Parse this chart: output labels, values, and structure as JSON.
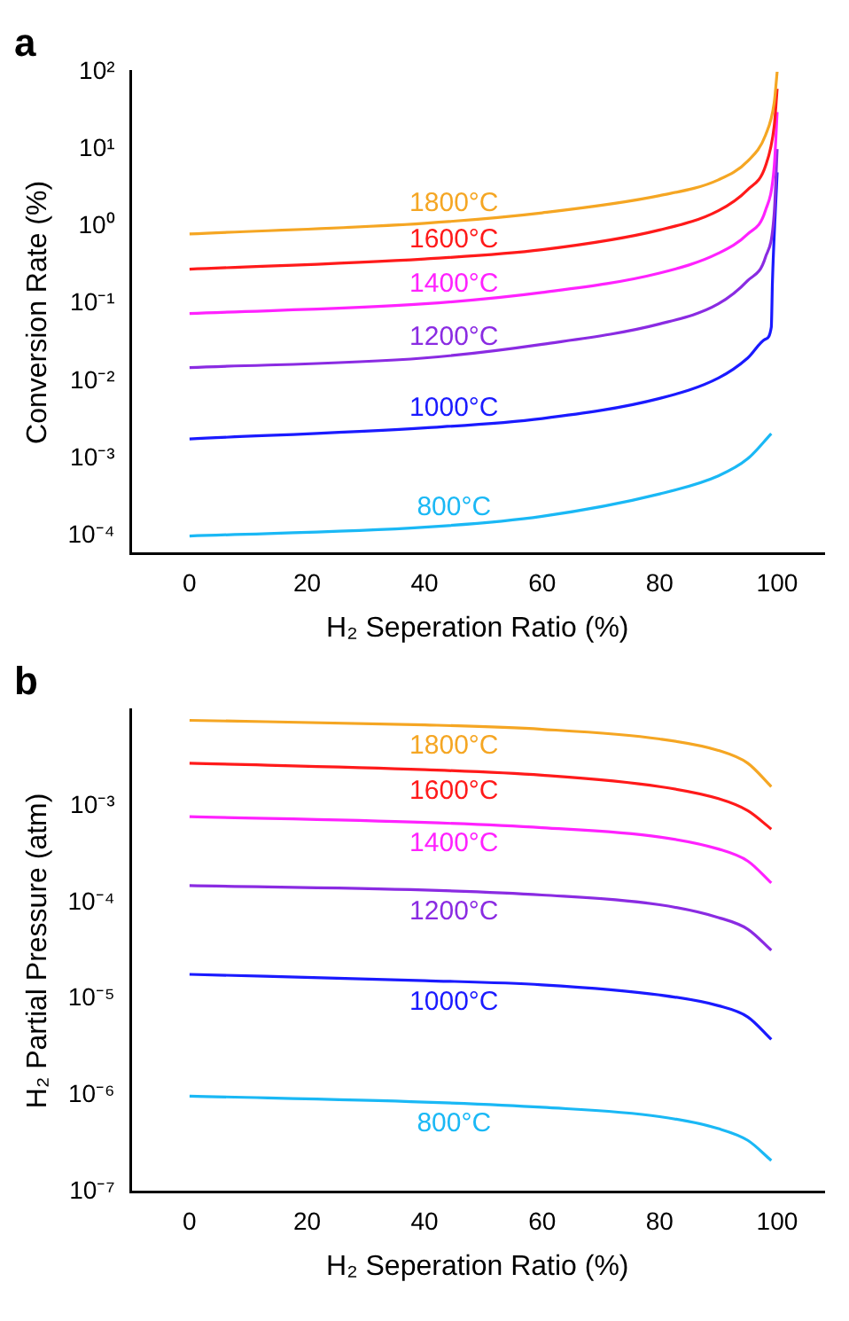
{
  "chart_data": [
    {
      "type": "line",
      "title": "a",
      "xlabel": "H₂ Seperation Ratio (%)",
      "ylabel": "Conversion Rate (%)",
      "log": "y",
      "grid": false,
      "legend": false,
      "marker": "none",
      "line_style": "solid",
      "xlim": [
        -10,
        108
      ],
      "xticks": [
        0,
        20,
        40,
        60,
        80,
        100
      ],
      "ylim": [
        6e-05,
        100
      ],
      "yticks": [
        {
          "value": 0.0001,
          "label": "10⁻⁴"
        },
        {
          "value": 0.001,
          "label": "10⁻³"
        },
        {
          "value": 0.01,
          "label": "10⁻²"
        },
        {
          "value": 0.1,
          "label": "10⁻¹"
        },
        {
          "value": 1,
          "label": "10⁰"
        },
        {
          "value": 10,
          "label": "10¹"
        },
        {
          "value": 100,
          "label": "10²"
        }
      ],
      "series": [
        {
          "name": "1800°C",
          "color": "#f5a623",
          "x": [
            0,
            40,
            60,
            80,
            90,
            95,
            98,
            99.5,
            100
          ],
          "values": [
            0.8,
            1.1,
            1.5,
            2.5,
            4,
            7,
            15,
            40,
            100
          ]
        },
        {
          "name": "1600°C",
          "color": "#ff1a1a",
          "x": [
            0,
            40,
            60,
            80,
            90,
            95,
            98,
            99.5,
            100
          ],
          "values": [
            0.28,
            0.38,
            0.5,
            0.9,
            1.6,
            3,
            6,
            20,
            60
          ]
        },
        {
          "name": "1400°C",
          "color": "#ff22ff",
          "x": [
            0,
            40,
            60,
            80,
            90,
            95,
            98,
            99.5,
            100
          ],
          "values": [
            0.075,
            0.1,
            0.14,
            0.25,
            0.45,
            0.8,
            1.6,
            6,
            30
          ]
        },
        {
          "name": "1200°C",
          "color": "#8a2be2",
          "x": [
            0,
            40,
            60,
            80,
            90,
            95,
            98,
            99.5,
            100
          ],
          "values": [
            0.015,
            0.02,
            0.03,
            0.055,
            0.1,
            0.2,
            0.4,
            1.5,
            10
          ]
        },
        {
          "name": "1000°C",
          "color": "#1a1aff",
          "x": [
            0,
            40,
            60,
            80,
            90,
            95,
            98,
            99,
            99.2,
            100
          ],
          "values": [
            0.0018,
            0.0025,
            0.0033,
            0.006,
            0.011,
            0.02,
            0.035,
            0.05,
            0.2,
            5
          ]
        },
        {
          "name": "800°C",
          "color": "#1ab8f5",
          "x": [
            0,
            40,
            60,
            80,
            90,
            95,
            99
          ],
          "values": [
            0.0001,
            0.00013,
            0.00018,
            0.00035,
            0.0006,
            0.001,
            0.0021
          ]
        }
      ]
    },
    {
      "type": "line",
      "title": "b",
      "xlabel": "H₂ Seperation Ratio (%)",
      "ylabel": "H₂ Partial Pressure (atm)",
      "log": "y",
      "grid": false,
      "legend": false,
      "marker": "none",
      "line_style": "solid",
      "xlim": [
        -10,
        108
      ],
      "xticks": [
        0,
        20,
        40,
        60,
        80,
        100
      ],
      "ylim": [
        1e-07,
        0.01
      ],
      "yticks": [
        {
          "value": 1e-07,
          "label": "10⁻⁷"
        },
        {
          "value": 1e-06,
          "label": "10⁻⁶"
        },
        {
          "value": 1e-05,
          "label": "10⁻⁵"
        },
        {
          "value": 0.0001,
          "label": "10⁻⁴"
        },
        {
          "value": 0.001,
          "label": "10⁻³"
        }
      ],
      "series": [
        {
          "name": "1800°C",
          "color": "#f5a623",
          "x": [
            0,
            40,
            60,
            80,
            90,
            95,
            99
          ],
          "values": [
            0.0078,
            0.007,
            0.0063,
            0.005,
            0.0038,
            0.0028,
            0.0016
          ]
        },
        {
          "name": "1600°C",
          "color": "#ff1a1a",
          "x": [
            0,
            40,
            60,
            80,
            90,
            95,
            99
          ],
          "values": [
            0.0028,
            0.0024,
            0.0021,
            0.0016,
            0.0012,
            0.0009,
            0.00058
          ]
        },
        {
          "name": "1400°C",
          "color": "#ff22ff",
          "x": [
            0,
            40,
            60,
            80,
            90,
            95,
            99
          ],
          "values": [
            0.00078,
            0.00068,
            0.0006,
            0.00048,
            0.00036,
            0.00027,
            0.00016
          ]
        },
        {
          "name": "1200°C",
          "color": "#8a2be2",
          "x": [
            0,
            40,
            60,
            80,
            90,
            95,
            99
          ],
          "values": [
            0.00015,
            0.000135,
            0.00012,
            9.5e-05,
            7e-05,
            5.3e-05,
            3.2e-05
          ]
        },
        {
          "name": "1000°C",
          "color": "#1a1aff",
          "x": [
            0,
            40,
            60,
            80,
            90,
            95,
            99
          ],
          "values": [
            1.8e-05,
            1.55e-05,
            1.4e-05,
            1.1e-05,
            8.5e-06,
            6.5e-06,
            3.8e-06
          ]
        },
        {
          "name": "800°C",
          "color": "#1ab8f5",
          "x": [
            0,
            40,
            60,
            80,
            90,
            95,
            99
          ],
          "values": [
            9.8e-07,
            8.5e-07,
            7.5e-07,
            6e-07,
            4.5e-07,
            3.4e-07,
            2.1e-07
          ]
        }
      ]
    }
  ]
}
